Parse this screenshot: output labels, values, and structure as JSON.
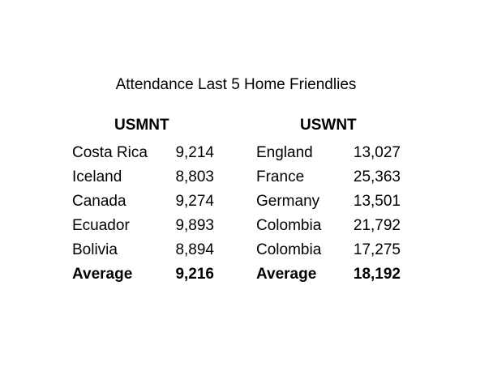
{
  "chart_data": {
    "type": "table",
    "title": "Attendance Last 5 Home Friendlies",
    "tables": [
      {
        "header": "USMNT",
        "rows": [
          {
            "team": "Costa Rica",
            "attendance": "9,214"
          },
          {
            "team": "Iceland",
            "attendance": "8,803"
          },
          {
            "team": "Canada",
            "attendance": "9,274"
          },
          {
            "team": "Ecuador",
            "attendance": "9,893"
          },
          {
            "team": "Bolivia",
            "attendance": "8,894"
          }
        ],
        "average_label": "Average",
        "average": "9,216"
      },
      {
        "header": "USWNT",
        "rows": [
          {
            "team": "England",
            "attendance": "13,027"
          },
          {
            "team": "France",
            "attendance": "25,363"
          },
          {
            "team": "Germany",
            "attendance": "13,501"
          },
          {
            "team": "Colombia",
            "attendance": "21,792"
          },
          {
            "team": "Colombia",
            "attendance": "17,275"
          }
        ],
        "average_label": "Average",
        "average": "18,192"
      }
    ]
  }
}
